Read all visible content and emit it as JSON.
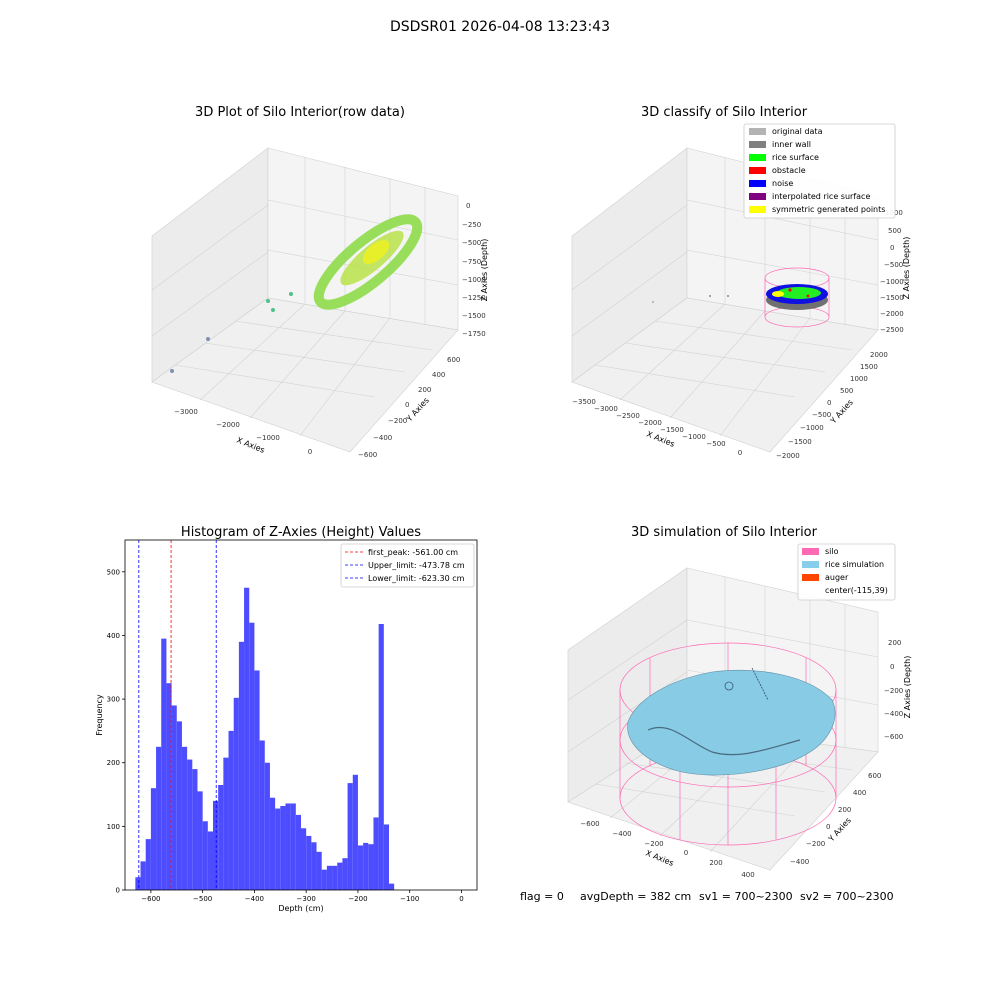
{
  "figure_title": "DSDSR01 2026-04-08 13:23:43",
  "colors": {
    "pane": "#f2f2f2",
    "grid": "#cfcfcf",
    "hist_bar": "#4d4dff",
    "first_peak_line": "#ff0000",
    "limit_line": "#0000ff",
    "silo_wire": "#ff69b4",
    "rice_surface": "#87cbe4"
  },
  "panels": {
    "raw": {
      "title": "3D Plot of Silo Interior(row data)",
      "xlabel": "X Axies",
      "ylabel": "Y Axies",
      "zlabel": "Z Axies (Depth)",
      "xticks": [
        "−3000",
        "−2000",
        "−1000",
        "0"
      ],
      "yticks": [
        "−600",
        "−400",
        "−200",
        "0",
        "200",
        "400",
        "600"
      ],
      "zticks": [
        "0",
        "−250",
        "−500",
        "−750",
        "−1000",
        "−1250",
        "−1500",
        "−1750"
      ]
    },
    "classify": {
      "title": "3D classify of Silo Interior",
      "xlabel": "X Axies",
      "ylabel": "Y Axies",
      "zlabel": "Z Axies (Depth)",
      "xticks": [
        "−3500",
        "−3000",
        "−2500",
        "−2000",
        "−1500",
        "−1000",
        "−500",
        "0"
      ],
      "yticks": [
        "−2000",
        "−1500",
        "−1000",
        "−500",
        "0",
        "500",
        "1000",
        "1500",
        "2000"
      ],
      "zticks": [
        "1000",
        "500",
        "0",
        "−500",
        "−1000",
        "−1500",
        "−2000",
        "−2500"
      ],
      "legend": [
        {
          "label": "original data",
          "color": "#b3b3b3"
        },
        {
          "label": "inner wall",
          "color": "#808080"
        },
        {
          "label": "rice surface",
          "color": "#00ff00"
        },
        {
          "label": "obstacle",
          "color": "#ff0000"
        },
        {
          "label": "noise",
          "color": "#0000ff"
        },
        {
          "label": "interpolated rice surface",
          "color": "#800080"
        },
        {
          "label": "symmetric generated points",
          "color": "#ffff00"
        }
      ]
    },
    "simulation": {
      "title": "3D simulation of Silo Interior",
      "xlabel": "X Axies",
      "ylabel": "Y Axies",
      "zlabel": "Z Axies (Depth)",
      "xticks": [
        "−600",
        "−400",
        "−200",
        "0",
        "200",
        "400"
      ],
      "yticks": [
        "−400",
        "−200",
        "0",
        "200",
        "400",
        "600"
      ],
      "zticks": [
        "200",
        "0",
        "−200",
        "−400",
        "−600"
      ],
      "legend": [
        {
          "label": "silo",
          "color": "#ff69b4"
        },
        {
          "label": "rice simulation",
          "color": "#87ceeb"
        },
        {
          "label": "auger",
          "color": "#ff4500"
        },
        {
          "label": "center(-115,39)",
          "color": ""
        }
      ]
    }
  },
  "chart_data": {
    "type": "bar",
    "title": "Histogram of Z-Axies (Height) Values",
    "xlabel": "Depth (cm)",
    "ylabel": "Frequency",
    "xlim": [
      -650,
      30
    ],
    "ylim": [
      0,
      550
    ],
    "xticks": [
      -600,
      -500,
      -400,
      -300,
      -200,
      -100,
      0
    ],
    "yticks": [
      0,
      100,
      200,
      300,
      400,
      500
    ],
    "bin_start": -630,
    "bin_width": 10,
    "values": [
      20,
      45,
      80,
      160,
      225,
      395,
      325,
      290,
      265,
      225,
      205,
      190,
      155,
      108,
      92,
      140,
      165,
      208,
      250,
      302,
      390,
      475,
      420,
      345,
      235,
      200,
      145,
      128,
      132,
      136,
      136,
      118,
      97,
      85,
      75,
      60,
      32,
      38,
      38,
      43,
      50,
      168,
      181,
      70,
      74,
      72,
      114,
      418,
      103,
      10
    ],
    "vlines": [
      {
        "label": "first_peak: -561.00 cm",
        "x": -561.0,
        "color": "#ff0000"
      },
      {
        "label": "Upper_limit: -473.78 cm",
        "x": -473.78,
        "color": "#0000ff"
      },
      {
        "label": "Lower_limit: -623.30 cm",
        "x": -623.3,
        "color": "#0000ff"
      }
    ]
  },
  "status": {
    "flag": "flag = 0",
    "avg_depth": "avgDepth = 382 cm",
    "sv1": "sv1 = 700~2300",
    "sv2": "sv2 = 700~2300"
  }
}
